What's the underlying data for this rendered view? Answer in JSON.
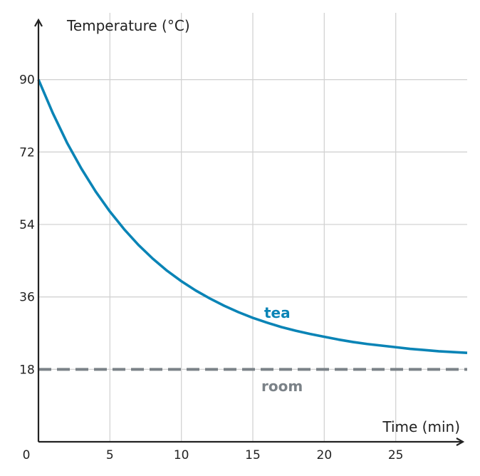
{
  "chart_data": {
    "type": "line",
    "xlabel": "Time (min)",
    "ylabel": "Temperature (°C)",
    "xlim": [
      0,
      30
    ],
    "ylim": [
      0,
      108
    ],
    "x_ticks": [
      5,
      10,
      15,
      20,
      25
    ],
    "y_ticks": [
      18,
      36,
      54,
      72,
      90
    ],
    "origin_label": "0",
    "grid": true,
    "series": [
      {
        "name": "tea",
        "color": "#0a84b6",
        "style": "solid",
        "x": [
          0,
          1,
          2,
          3,
          4,
          5,
          6,
          7,
          8,
          9,
          10,
          11,
          12,
          13,
          14,
          15,
          16,
          17,
          18,
          19,
          20,
          21,
          22,
          23,
          24,
          25,
          26,
          27,
          28,
          29,
          30
        ],
        "y": [
          90,
          81.7,
          74.3,
          67.9,
          62.2,
          57.2,
          52.8,
          48.9,
          45.5,
          42.5,
          39.9,
          37.6,
          35.6,
          33.8,
          32.2,
          30.8,
          29.6,
          28.5,
          27.6,
          26.8,
          26.1,
          25.4,
          24.8,
          24.3,
          23.9,
          23.5,
          23.1,
          22.8,
          22.5,
          22.3,
          22.1
        ]
      },
      {
        "name": "room",
        "color": "#7b8288",
        "style": "dashed",
        "x": [
          0,
          30
        ],
        "y": [
          18,
          18
        ]
      }
    ]
  }
}
